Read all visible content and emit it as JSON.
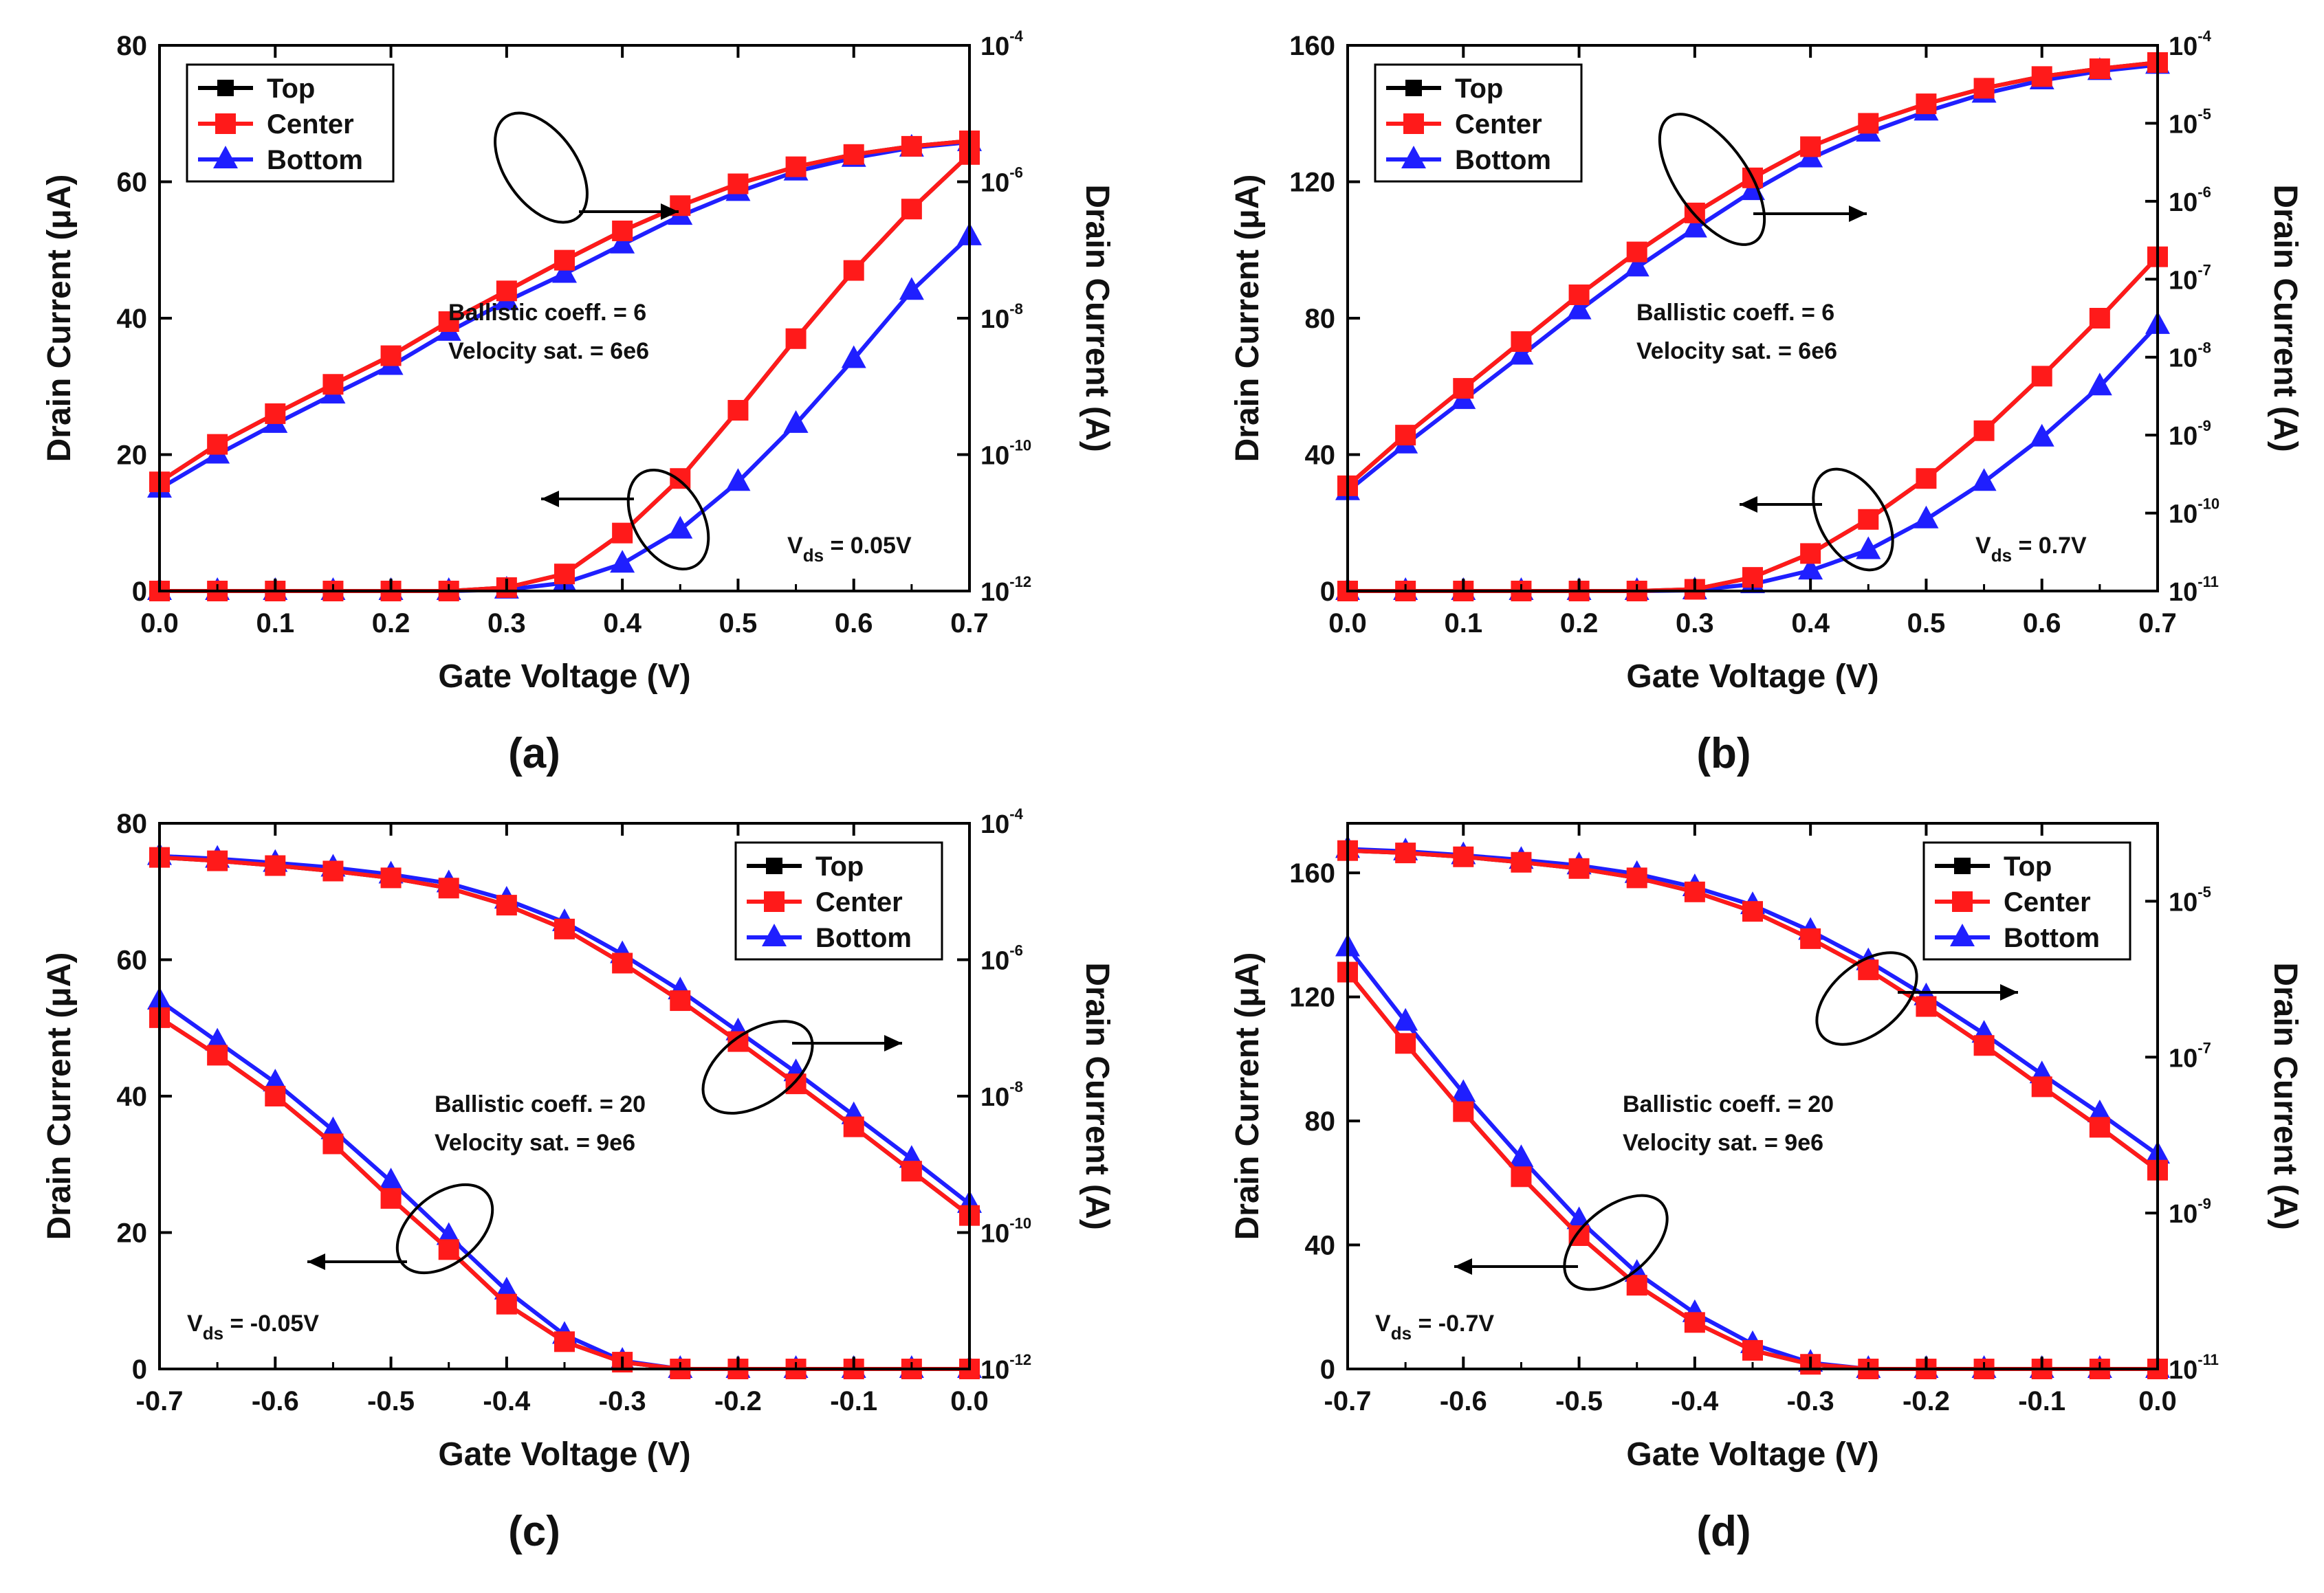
{
  "figure": {
    "panels": [
      "(a)",
      "(b)",
      "(c)",
      "(d)"
    ]
  },
  "colors": {
    "top": "#000000",
    "center": "#ff1a1a",
    "bottom": "#1f1fff",
    "axis": "#000000"
  },
  "chart_data": [
    {
      "id": "a",
      "type": "line",
      "panel_label": "(a)",
      "xlabel": "Gate Voltage (V)",
      "ylabel": "Drain Current (μA)",
      "y2label": "Drain Current (A)",
      "xlim": [
        0.0,
        0.7
      ],
      "xticks": [
        "0.0",
        "0.1",
        "0.2",
        "0.3",
        "0.4",
        "0.5",
        "0.6",
        "0.7"
      ],
      "xtick_values": [
        0.0,
        0.1,
        0.2,
        0.3,
        0.4,
        0.5,
        0.6,
        0.7
      ],
      "ylim": [
        0,
        80
      ],
      "yticks": [
        "0",
        "20",
        "40",
        "60",
        "80"
      ],
      "ytick_values": [
        0,
        20,
        40,
        60,
        80
      ],
      "y2lim_log": [
        -12,
        -4
      ],
      "y2ticks": [
        {
          "base": "10",
          "exp": "-12",
          "value": -12
        },
        {
          "base": "10",
          "exp": "-10",
          "value": -10
        },
        {
          "base": "10",
          "exp": "-8",
          "value": -8
        },
        {
          "base": "10",
          "exp": "-6",
          "value": -6
        },
        {
          "base": "10",
          "exp": "-4",
          "value": -4
        }
      ],
      "legend": {
        "entries": [
          "Top",
          "Center",
          "Bottom"
        ],
        "position": "top-left"
      },
      "annotation": {
        "line1": "Ballistic coeff. = 6",
        "line2": "Velocity sat. = 6e6"
      },
      "vds": {
        "sub": "ds",
        "value": " = 0.05V"
      },
      "x": [
        0.0,
        0.05,
        0.1,
        0.15,
        0.2,
        0.25,
        0.3,
        0.35,
        0.4,
        0.45,
        0.5,
        0.55,
        0.6,
        0.65,
        0.7
      ],
      "series": [
        {
          "name": "Top",
          "scale": "log",
          "values": [
            -10.4,
            -9.85,
            -9.4,
            -8.97,
            -8.55,
            -8.05,
            -7.6,
            -7.15,
            -6.72,
            -6.35,
            -6.03,
            -5.78,
            -5.6,
            -5.48,
            -5.4
          ]
        },
        {
          "name": "Center",
          "scale": "log",
          "values": [
            -10.4,
            -9.85,
            -9.4,
            -8.97,
            -8.55,
            -8.05,
            -7.6,
            -7.15,
            -6.72,
            -6.35,
            -6.03,
            -5.78,
            -5.6,
            -5.48,
            -5.4
          ]
        },
        {
          "name": "Bottom",
          "scale": "log",
          "values": [
            -10.5,
            -10.0,
            -9.55,
            -9.12,
            -8.7,
            -8.2,
            -7.75,
            -7.35,
            -6.92,
            -6.5,
            -6.15,
            -5.85,
            -5.65,
            -5.5,
            -5.42
          ]
        },
        {
          "name": "Top",
          "scale": "linear",
          "values": [
            0,
            0,
            0,
            0,
            0,
            0,
            0.5,
            2.5,
            8.5,
            16.5,
            26.5,
            37,
            47,
            56,
            64
          ]
        },
        {
          "name": "Center",
          "scale": "linear",
          "values": [
            0,
            0,
            0,
            0,
            0,
            0,
            0.5,
            2.5,
            8.5,
            16.5,
            26.5,
            37,
            47,
            56,
            64
          ]
        },
        {
          "name": "Bottom",
          "scale": "linear",
          "values": [
            0,
            0,
            0,
            0,
            0,
            0,
            0.2,
            1.2,
            4,
            9,
            16,
            24.5,
            34,
            44,
            52
          ]
        }
      ]
    },
    {
      "id": "b",
      "type": "line",
      "panel_label": "(b)",
      "xlabel": "Gate Voltage (V)",
      "ylabel": "Drain Current (μA)",
      "y2label": "Drain Current (A)",
      "xlim": [
        0.0,
        0.7
      ],
      "xticks": [
        "0.0",
        "0.1",
        "0.2",
        "0.3",
        "0.4",
        "0.5",
        "0.6",
        "0.7"
      ],
      "xtick_values": [
        0.0,
        0.1,
        0.2,
        0.3,
        0.4,
        0.5,
        0.6,
        0.7
      ],
      "ylim": [
        0,
        160
      ],
      "yticks": [
        "0",
        "40",
        "80",
        "120",
        "160"
      ],
      "ytick_values": [
        0,
        40,
        80,
        120,
        160
      ],
      "y2lim_log": [
        -11,
        -4
      ],
      "y2ticks": [
        {
          "base": "10",
          "exp": "-11",
          "value": -11
        },
        {
          "base": "10",
          "exp": "-10",
          "value": -10
        },
        {
          "base": "10",
          "exp": "-9",
          "value": -9
        },
        {
          "base": "10",
          "exp": "-8",
          "value": -8
        },
        {
          "base": "10",
          "exp": "-7",
          "value": -7
        },
        {
          "base": "10",
          "exp": "-6",
          "value": -6
        },
        {
          "base": "10",
          "exp": "-5",
          "value": -5
        },
        {
          "base": "10",
          "exp": "-4",
          "value": -4
        }
      ],
      "legend": {
        "entries": [
          "Top",
          "Center",
          "Bottom"
        ],
        "position": "top-left"
      },
      "annotation": {
        "line1": "Ballistic coeff. = 6",
        "line2": "Velocity sat. = 6e6"
      },
      "vds": {
        "sub": "ds",
        "value": " = 0.7V"
      },
      "x": [
        0.0,
        0.05,
        0.1,
        0.15,
        0.2,
        0.25,
        0.3,
        0.35,
        0.4,
        0.45,
        0.5,
        0.55,
        0.6,
        0.65,
        0.7
      ],
      "series": [
        {
          "name": "Top",
          "scale": "log",
          "values": [
            -9.65,
            -9.0,
            -8.4,
            -7.8,
            -7.2,
            -6.65,
            -6.15,
            -5.7,
            -5.3,
            -5.0,
            -4.75,
            -4.55,
            -4.4,
            -4.3,
            -4.22
          ]
        },
        {
          "name": "Center",
          "scale": "log",
          "values": [
            -9.65,
            -9.0,
            -8.4,
            -7.8,
            -7.2,
            -6.65,
            -6.15,
            -5.7,
            -5.3,
            -5.0,
            -4.75,
            -4.55,
            -4.4,
            -4.3,
            -4.22
          ]
        },
        {
          "name": "Bottom",
          "scale": "log",
          "values": [
            -9.72,
            -9.12,
            -8.55,
            -7.98,
            -7.4,
            -6.85,
            -6.35,
            -5.87,
            -5.45,
            -5.12,
            -4.85,
            -4.62,
            -4.45,
            -4.33,
            -4.25
          ]
        },
        {
          "name": "Top",
          "scale": "linear",
          "values": [
            0,
            0,
            0,
            0,
            0,
            0,
            0.5,
            4,
            11,
            21,
            33,
            47,
            63,
            80,
            98
          ]
        },
        {
          "name": "Center",
          "scale": "linear",
          "values": [
            0,
            0,
            0,
            0,
            0,
            0,
            0.5,
            4,
            11,
            21,
            33,
            47,
            63,
            80,
            98
          ]
        },
        {
          "name": "Bottom",
          "scale": "linear",
          "values": [
            0,
            0,
            0,
            0,
            0,
            0,
            0.2,
            2,
            6,
            12,
            21,
            32,
            45,
            60,
            78
          ]
        }
      ]
    },
    {
      "id": "c",
      "type": "line",
      "panel_label": "(c)",
      "xlabel": "Gate Voltage (V)",
      "ylabel": "Drain Current (μA)",
      "y2label": "Drain Current (A)",
      "xlim": [
        -0.7,
        0.0
      ],
      "xticks": [
        "-0.7",
        "-0.6",
        "-0.5",
        "-0.4",
        "-0.3",
        "-0.2",
        "-0.1",
        "0.0"
      ],
      "xtick_values": [
        -0.7,
        -0.6,
        -0.5,
        -0.4,
        -0.3,
        -0.2,
        -0.1,
        0.0
      ],
      "ylim": [
        0,
        80
      ],
      "yticks": [
        "0",
        "20",
        "40",
        "60",
        "80"
      ],
      "ytick_values": [
        0,
        20,
        40,
        60,
        80
      ],
      "y2lim_log": [
        -12,
        -4
      ],
      "y2ticks": [
        {
          "base": "10",
          "exp": "-12",
          "value": -12
        },
        {
          "base": "10",
          "exp": "-10",
          "value": -10
        },
        {
          "base": "10",
          "exp": "-8",
          "value": -8
        },
        {
          "base": "10",
          "exp": "-6",
          "value": -6
        },
        {
          "base": "10",
          "exp": "-4",
          "value": -4
        }
      ],
      "legend": {
        "entries": [
          "Top",
          "Center",
          "Bottom"
        ],
        "position": "top-right"
      },
      "annotation": {
        "line1": "Ballistic coeff. = 20",
        "line2": "Velocity sat. = 9e6"
      },
      "vds": {
        "sub": "ds",
        "value": " = -0.05V"
      },
      "x": [
        -0.7,
        -0.65,
        -0.6,
        -0.55,
        -0.5,
        -0.45,
        -0.4,
        -0.35,
        -0.3,
        -0.25,
        -0.2,
        -0.15,
        -0.1,
        -0.05,
        0.0
      ],
      "series": [
        {
          "name": "Top",
          "scale": "log",
          "values": [
            -4.5,
            -4.55,
            -4.62,
            -4.7,
            -4.8,
            -4.95,
            -5.2,
            -5.55,
            -6.05,
            -6.6,
            -7.2,
            -7.82,
            -8.45,
            -9.1,
            -9.75
          ]
        },
        {
          "name": "Center",
          "scale": "log",
          "values": [
            -4.5,
            -4.55,
            -4.62,
            -4.7,
            -4.8,
            -4.95,
            -5.2,
            -5.55,
            -6.05,
            -6.6,
            -7.2,
            -7.82,
            -8.45,
            -9.1,
            -9.75
          ]
        },
        {
          "name": "Bottom",
          "scale": "log",
          "values": [
            -4.48,
            -4.52,
            -4.58,
            -4.65,
            -4.75,
            -4.88,
            -5.12,
            -5.45,
            -5.92,
            -6.45,
            -7.05,
            -7.65,
            -8.28,
            -8.92,
            -9.58
          ]
        },
        {
          "name": "Top",
          "scale": "linear",
          "values": [
            51.5,
            46,
            40,
            33,
            25,
            17.5,
            9.5,
            4,
            1,
            0,
            0,
            0,
            0,
            0,
            0
          ]
        },
        {
          "name": "Center",
          "scale": "linear",
          "values": [
            51.5,
            46,
            40,
            33,
            25,
            17.5,
            9.5,
            4,
            1,
            0,
            0,
            0,
            0,
            0,
            0
          ]
        },
        {
          "name": "Bottom",
          "scale": "linear",
          "values": [
            54,
            48,
            42,
            35,
            27.5,
            19.5,
            11.5,
            5,
            1.2,
            0,
            0,
            0,
            0,
            0,
            0
          ]
        }
      ]
    },
    {
      "id": "d",
      "type": "line",
      "panel_label": "(d)",
      "xlabel": "Gate Voltage (V)",
      "ylabel": "Drain Current (μA)",
      "y2label": "Drain Current (A)",
      "xlim": [
        -0.7,
        0.0
      ],
      "xticks": [
        "-0.7",
        "-0.6",
        "-0.5",
        "-0.4",
        "-0.3",
        "-0.2",
        "-0.1",
        "0.0"
      ],
      "xtick_values": [
        -0.7,
        -0.6,
        -0.5,
        -0.4,
        -0.3,
        -0.2,
        -0.1,
        0.0
      ],
      "ylim": [
        0,
        176
      ],
      "yticks": [
        "0",
        "40",
        "80",
        "120",
        "160"
      ],
      "ytick_values": [
        0,
        40,
        80,
        120,
        160
      ],
      "y2lim_log": [
        -11,
        -4
      ],
      "y2ticks": [
        {
          "base": "10",
          "exp": "-11",
          "value": -11
        },
        {
          "base": "10",
          "exp": "-9",
          "value": -9
        },
        {
          "base": "10",
          "exp": "-7",
          "value": -7
        },
        {
          "base": "10",
          "exp": "-5",
          "value": -5
        }
      ],
      "legend": {
        "entries": [
          "Top",
          "Center",
          "Bottom"
        ],
        "position": "top-right"
      },
      "annotation": {
        "line1": "Ballistic coeff. = 20",
        "line2": "Velocity sat. = 9e6"
      },
      "vds": {
        "sub": "ds",
        "value": " = -0.7V"
      },
      "x": [
        -0.7,
        -0.65,
        -0.6,
        -0.55,
        -0.5,
        -0.45,
        -0.4,
        -0.35,
        -0.3,
        -0.25,
        -0.2,
        -0.15,
        -0.1,
        -0.05,
        0.0
      ],
      "series": [
        {
          "name": "Top",
          "scale": "log",
          "values": [
            -4.35,
            -4.38,
            -4.43,
            -4.5,
            -4.58,
            -4.7,
            -4.88,
            -5.13,
            -5.48,
            -5.88,
            -6.35,
            -6.85,
            -7.38,
            -7.9,
            -8.45
          ]
        },
        {
          "name": "Center",
          "scale": "log",
          "values": [
            -4.35,
            -4.38,
            -4.43,
            -4.5,
            -4.58,
            -4.7,
            -4.88,
            -5.13,
            -5.48,
            -5.88,
            -6.35,
            -6.85,
            -7.38,
            -7.9,
            -8.45
          ]
        },
        {
          "name": "Bottom",
          "scale": "log",
          "values": [
            -4.33,
            -4.36,
            -4.41,
            -4.47,
            -4.54,
            -4.65,
            -4.82,
            -5.05,
            -5.38,
            -5.77,
            -6.22,
            -6.7,
            -7.22,
            -7.72,
            -8.25
          ]
        },
        {
          "name": "Top",
          "scale": "linear",
          "values": [
            128,
            105,
            83,
            62,
            43,
            27,
            15,
            6,
            1.5,
            0,
            0,
            0,
            0,
            0,
            0
          ]
        },
        {
          "name": "Center",
          "scale": "linear",
          "values": [
            128,
            105,
            83,
            62,
            43,
            27,
            15,
            6,
            1.5,
            0,
            0,
            0,
            0,
            0,
            0
          ]
        },
        {
          "name": "Bottom",
          "scale": "linear",
          "values": [
            136,
            112,
            89,
            68,
            48,
            31,
            18,
            8,
            2,
            0,
            0,
            0,
            0,
            0,
            0
          ]
        }
      ]
    }
  ]
}
